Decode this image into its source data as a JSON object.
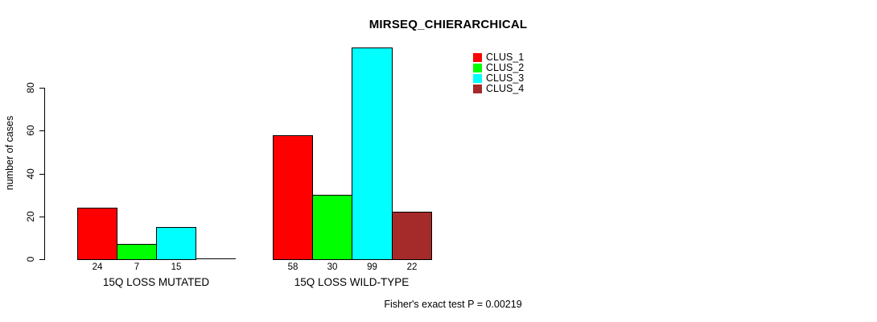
{
  "chart_data": {
    "type": "bar",
    "title": "MIRSEQ_CHIERARCHICAL",
    "xlabel": "",
    "ylabel": "number of cases",
    "yticks": [
      0,
      20,
      40,
      60,
      80
    ],
    "ylim": [
      0,
      100
    ],
    "grid": false,
    "legend_position": "top-right",
    "series": [
      {
        "name": "CLUS_1",
        "color": "#FF0000"
      },
      {
        "name": "CLUS_2",
        "color": "#00FF00"
      },
      {
        "name": "CLUS_3",
        "color": "#00FFFF"
      },
      {
        "name": "CLUS_4",
        "color": "#A52A2A"
      }
    ],
    "groups": [
      {
        "label": "15Q LOSS MUTATED",
        "values": [
          24,
          7,
          15,
          0
        ],
        "bar_labels": [
          "24",
          "7",
          "15",
          null
        ]
      },
      {
        "label": "15Q LOSS WILD-TYPE",
        "values": [
          58,
          30,
          99,
          22
        ],
        "bar_labels": [
          "58",
          "30",
          "99",
          "22"
        ]
      }
    ],
    "annotation": "Fisher's exact test P = 0.00219"
  }
}
